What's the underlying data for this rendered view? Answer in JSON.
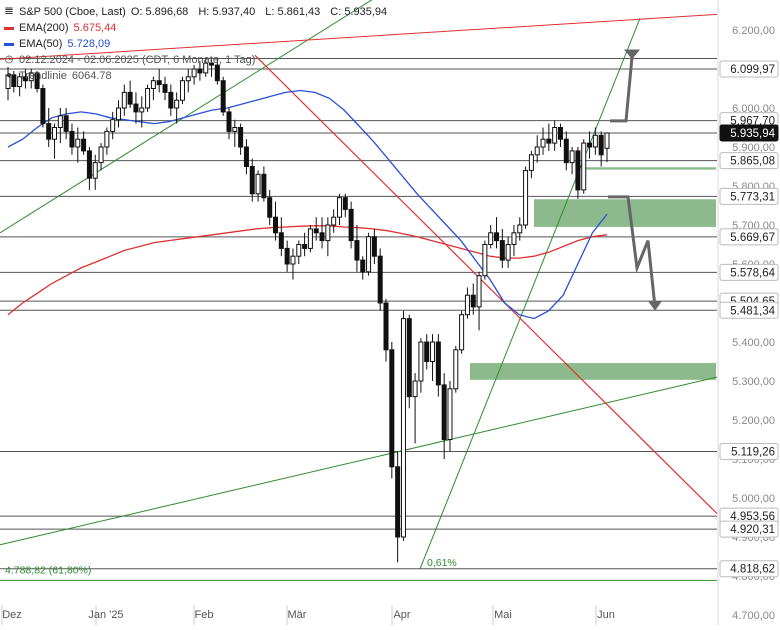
{
  "chart_data": {
    "type": "candlestick",
    "instrument": "S&P 500 (Cboe, Last)",
    "ohlc_last": {
      "O": "5.896,68",
      "H": "5.937,40",
      "L": "5.861,43",
      "C": "5.935,94"
    },
    "legend": {
      "ema200": {
        "label": "EMA(200)",
        "value": "5.675,44",
        "color": "#e03030"
      },
      "ema50": {
        "label": "EMA(50)",
        "value": "5.728,09",
        "color": "#2850d8"
      },
      "range": "02.12.2024 - 02.06.2025  (CDT, 6 Monate, 1 Tag)",
      "trendline": {
        "label": "Trendlinie",
        "value": "6064.78"
      }
    },
    "y_range": [
      4700,
      6300
    ],
    "y_ticks": [
      {
        "v": 4700,
        "label": "4.700,00"
      },
      {
        "v": 4800,
        "label": "4.800,00"
      },
      {
        "v": 4900,
        "label": "4.900,00"
      },
      {
        "v": 5000,
        "label": "5.000,00"
      },
      {
        "v": 5100,
        "label": "5.100,00"
      },
      {
        "v": 5200,
        "label": "5.200,00"
      },
      {
        "v": 5300,
        "label": "5.300,00"
      },
      {
        "v": 5400,
        "label": "5.400,00"
      },
      {
        "v": 5500,
        "label": "5.500,00"
      },
      {
        "v": 5600,
        "label": "5.600,00"
      },
      {
        "v": 5700,
        "label": "5.700,00"
      },
      {
        "v": 5800,
        "label": "5.800,00"
      },
      {
        "v": 5900,
        "label": "5.900,00"
      },
      {
        "v": 6000,
        "label": "6.000,00"
      },
      {
        "v": 6100,
        "label": "6.100,00"
      },
      {
        "v": 6200,
        "label": "6.200,00"
      }
    ],
    "x_labels": [
      "Dez",
      "Jan '25",
      "Feb",
      "Mär",
      "Apr",
      "Mai",
      "Jun"
    ],
    "price_levels": [
      {
        "v": 6127,
        "label": ""
      },
      {
        "v": 6099.97,
        "label": "6.099,97"
      },
      {
        "v": 5967.7,
        "label": "5.967,70"
      },
      {
        "v": 5935.94,
        "label": "5.935,94",
        "current": true
      },
      {
        "v": 5865.08,
        "label": "5.865,08"
      },
      {
        "v": 5773.31,
        "label": "5.773,31"
      },
      {
        "v": 5669.67,
        "label": "5.669,67"
      },
      {
        "v": 5578.64,
        "label": "5.578,64"
      },
      {
        "v": 5504.65,
        "label": "5.504,65"
      },
      {
        "v": 5481.34,
        "label": "5.481,34"
      },
      {
        "v": 5119.26,
        "label": "5.119,26"
      },
      {
        "v": 4953.56,
        "label": "4.953,56"
      },
      {
        "v": 4920.31,
        "label": "4.920,31"
      },
      {
        "v": 4818.62,
        "label": "4.818,62"
      },
      {
        "v": 4788.82,
        "label": ""
      }
    ],
    "annotations": [
      {
        "text": "4.788,82 (61,80%)",
        "color": "#2e8b2e"
      },
      {
        "text": "0,61%",
        "color": "#2e8b2e"
      }
    ],
    "zones": [
      {
        "from": 5842,
        "to": 5848,
        "color": "#7fb37f"
      },
      {
        "from": 5695,
        "to": 5766,
        "color": "#7fb37f"
      },
      {
        "from": 5303,
        "to": 5346,
        "color": "#7fb37f"
      }
    ],
    "candles": [
      {
        "o": 6050,
        "h": 6105,
        "l": 6020,
        "c": 6085
      },
      {
        "o": 6085,
        "h": 6095,
        "l": 6040,
        "c": 6055
      },
      {
        "o": 6055,
        "h": 6090,
        "l": 6030,
        "c": 6080
      },
      {
        "o": 6080,
        "h": 6100,
        "l": 6050,
        "c": 6070
      },
      {
        "o": 6070,
        "h": 6100,
        "l": 6050,
        "c": 6090
      },
      {
        "o": 6090,
        "h": 6095,
        "l": 6040,
        "c": 6050
      },
      {
        "o": 6050,
        "h": 6060,
        "l": 5950,
        "c": 5960
      },
      {
        "o": 5960,
        "h": 6000,
        "l": 5900,
        "c": 5920
      },
      {
        "o": 5920,
        "h": 5960,
        "l": 5870,
        "c": 5950
      },
      {
        "o": 5950,
        "h": 6000,
        "l": 5910,
        "c": 5980
      },
      {
        "o": 5980,
        "h": 6000,
        "l": 5920,
        "c": 5940
      },
      {
        "o": 5940,
        "h": 5960,
        "l": 5880,
        "c": 5900
      },
      {
        "o": 5900,
        "h": 5950,
        "l": 5860,
        "c": 5920
      },
      {
        "o": 5920,
        "h": 5940,
        "l": 5880,
        "c": 5890
      },
      {
        "o": 5890,
        "h": 5900,
        "l": 5790,
        "c": 5820
      },
      {
        "o": 5820,
        "h": 5880,
        "l": 5790,
        "c": 5860
      },
      {
        "o": 5860,
        "h": 5910,
        "l": 5840,
        "c": 5900
      },
      {
        "o": 5900,
        "h": 5950,
        "l": 5880,
        "c": 5940
      },
      {
        "o": 5940,
        "h": 5990,
        "l": 5920,
        "c": 5970
      },
      {
        "o": 5970,
        "h": 6020,
        "l": 5950,
        "c": 6000
      },
      {
        "o": 6000,
        "h": 6060,
        "l": 5980,
        "c": 6040
      },
      {
        "o": 6040,
        "h": 6070,
        "l": 6000,
        "c": 6010
      },
      {
        "o": 6010,
        "h": 6040,
        "l": 5960,
        "c": 5990
      },
      {
        "o": 5990,
        "h": 6030,
        "l": 5950,
        "c": 6000
      },
      {
        "o": 6000,
        "h": 6060,
        "l": 5990,
        "c": 6050
      },
      {
        "o": 6050,
        "h": 6080,
        "l": 6020,
        "c": 6070
      },
      {
        "o": 6070,
        "h": 6100,
        "l": 6040,
        "c": 6060
      },
      {
        "o": 6060,
        "h": 6080,
        "l": 6020,
        "c": 6040
      },
      {
        "o": 6040,
        "h": 6060,
        "l": 5980,
        "c": 6000
      },
      {
        "o": 6000,
        "h": 6040,
        "l": 5960,
        "c": 6020
      },
      {
        "o": 6020,
        "h": 6080,
        "l": 6010,
        "c": 6070
      },
      {
        "o": 6070,
        "h": 6100,
        "l": 6040,
        "c": 6080
      },
      {
        "o": 6080,
        "h": 6110,
        "l": 6060,
        "c": 6100
      },
      {
        "o": 6100,
        "h": 6120,
        "l": 6070,
        "c": 6090
      },
      {
        "o": 6090,
        "h": 6127,
        "l": 6080,
        "c": 6115
      },
      {
        "o": 6115,
        "h": 6125,
        "l": 6080,
        "c": 6110
      },
      {
        "o": 6110,
        "h": 6130,
        "l": 6060,
        "c": 6070
      },
      {
        "o": 6070,
        "h": 6080,
        "l": 5980,
        "c": 5990
      },
      {
        "o": 5990,
        "h": 6000,
        "l": 5920,
        "c": 5940
      },
      {
        "o": 5940,
        "h": 5970,
        "l": 5900,
        "c": 5950
      },
      {
        "o": 5950,
        "h": 5960,
        "l": 5880,
        "c": 5900
      },
      {
        "o": 5900,
        "h": 5920,
        "l": 5830,
        "c": 5850
      },
      {
        "o": 5850,
        "h": 5870,
        "l": 5760,
        "c": 5780
      },
      {
        "o": 5780,
        "h": 5840,
        "l": 5760,
        "c": 5830
      },
      {
        "o": 5830,
        "h": 5850,
        "l": 5760,
        "c": 5770
      },
      {
        "o": 5770,
        "h": 5790,
        "l": 5700,
        "c": 5720
      },
      {
        "o": 5720,
        "h": 5760,
        "l": 5660,
        "c": 5680
      },
      {
        "o": 5680,
        "h": 5720,
        "l": 5620,
        "c": 5640
      },
      {
        "o": 5640,
        "h": 5660,
        "l": 5580,
        "c": 5600
      },
      {
        "o": 5600,
        "h": 5640,
        "l": 5560,
        "c": 5620
      },
      {
        "o": 5620,
        "h": 5660,
        "l": 5600,
        "c": 5650
      },
      {
        "o": 5650,
        "h": 5680,
        "l": 5620,
        "c": 5640
      },
      {
        "o": 5640,
        "h": 5700,
        "l": 5630,
        "c": 5690
      },
      {
        "o": 5690,
        "h": 5720,
        "l": 5660,
        "c": 5680
      },
      {
        "o": 5680,
        "h": 5720,
        "l": 5640,
        "c": 5660
      },
      {
        "o": 5660,
        "h": 5720,
        "l": 5620,
        "c": 5700
      },
      {
        "o": 5700,
        "h": 5740,
        "l": 5680,
        "c": 5720
      },
      {
        "o": 5720,
        "h": 5780,
        "l": 5700,
        "c": 5770
      },
      {
        "o": 5770,
        "h": 5780,
        "l": 5720,
        "c": 5740
      },
      {
        "o": 5740,
        "h": 5760,
        "l": 5640,
        "c": 5660
      },
      {
        "o": 5660,
        "h": 5700,
        "l": 5580,
        "c": 5610
      },
      {
        "o": 5610,
        "h": 5620,
        "l": 5560,
        "c": 5580
      },
      {
        "o": 5580,
        "h": 5680,
        "l": 5570,
        "c": 5670
      },
      {
        "o": 5670,
        "h": 5690,
        "l": 5600,
        "c": 5620
      },
      {
        "o": 5620,
        "h": 5640,
        "l": 5480,
        "c": 5500
      },
      {
        "o": 5500,
        "h": 5510,
        "l": 5350,
        "c": 5380
      },
      {
        "o": 5380,
        "h": 5400,
        "l": 5050,
        "c": 5080
      },
      {
        "o": 5080,
        "h": 5120,
        "l": 4835,
        "c": 4900
      },
      {
        "o": 4900,
        "h": 5480,
        "l": 4890,
        "c": 5460
      },
      {
        "o": 5460,
        "h": 5470,
        "l": 5230,
        "c": 5260
      },
      {
        "o": 5260,
        "h": 5320,
        "l": 5140,
        "c": 5300
      },
      {
        "o": 5300,
        "h": 5410,
        "l": 5270,
        "c": 5400
      },
      {
        "o": 5400,
        "h": 5420,
        "l": 5330,
        "c": 5350
      },
      {
        "o": 5350,
        "h": 5420,
        "l": 5300,
        "c": 5400
      },
      {
        "o": 5400,
        "h": 5420,
        "l": 5260,
        "c": 5290
      },
      {
        "o": 5290,
        "h": 5320,
        "l": 5100,
        "c": 5150
      },
      {
        "o": 5150,
        "h": 5300,
        "l": 5120,
        "c": 5280
      },
      {
        "o": 5280,
        "h": 5390,
        "l": 5270,
        "c": 5380
      },
      {
        "o": 5380,
        "h": 5480,
        "l": 5370,
        "c": 5470
      },
      {
        "o": 5470,
        "h": 5540,
        "l": 5460,
        "c": 5520
      },
      {
        "o": 5520,
        "h": 5550,
        "l": 5470,
        "c": 5490
      },
      {
        "o": 5490,
        "h": 5580,
        "l": 5430,
        "c": 5570
      },
      {
        "o": 5570,
        "h": 5660,
        "l": 5560,
        "c": 5650
      },
      {
        "o": 5650,
        "h": 5700,
        "l": 5640,
        "c": 5680
      },
      {
        "o": 5680,
        "h": 5720,
        "l": 5640,
        "c": 5660
      },
      {
        "o": 5660,
        "h": 5690,
        "l": 5590,
        "c": 5610
      },
      {
        "o": 5610,
        "h": 5670,
        "l": 5590,
        "c": 5650
      },
      {
        "o": 5650,
        "h": 5700,
        "l": 5620,
        "c": 5680
      },
      {
        "o": 5680,
        "h": 5720,
        "l": 5660,
        "c": 5700
      },
      {
        "o": 5700,
        "h": 5850,
        "l": 5690,
        "c": 5840
      },
      {
        "o": 5840,
        "h": 5890,
        "l": 5820,
        "c": 5880
      },
      {
        "o": 5880,
        "h": 5930,
        "l": 5860,
        "c": 5900
      },
      {
        "o": 5900,
        "h": 5950,
        "l": 5880,
        "c": 5920
      },
      {
        "o": 5920,
        "h": 5960,
        "l": 5890,
        "c": 5910
      },
      {
        "o": 5910,
        "h": 5968,
        "l": 5890,
        "c": 5950
      },
      {
        "o": 5950,
        "h": 5960,
        "l": 5900,
        "c": 5920
      },
      {
        "o": 5920,
        "h": 5940,
        "l": 5840,
        "c": 5860
      },
      {
        "o": 5860,
        "h": 5900,
        "l": 5830,
        "c": 5890
      },
      {
        "o": 5890,
        "h": 5900,
        "l": 5767,
        "c": 5790
      },
      {
        "o": 5790,
        "h": 5920,
        "l": 5780,
        "c": 5910
      },
      {
        "o": 5910,
        "h": 5940,
        "l": 5870,
        "c": 5900
      },
      {
        "o": 5900,
        "h": 5950,
        "l": 5880,
        "c": 5930
      },
      {
        "o": 5930,
        "h": 5940,
        "l": 5850,
        "c": 5880
      },
      {
        "o": 5896.68,
        "h": 5937.4,
        "l": 5861.43,
        "c": 5935.94
      }
    ],
    "ema50": [
      5900,
      5920,
      5950,
      5975,
      5985,
      5990,
      5985,
      5975,
      5970,
      5965,
      5960,
      5965,
      5975,
      5985,
      5995,
      6000,
      6010,
      6020,
      6030,
      6040,
      6045,
      6040,
      6025,
      5995,
      5955,
      5915,
      5870,
      5825,
      5780,
      5740,
      5700,
      5660,
      5610,
      5560,
      5500,
      5470,
      5460,
      5480,
      5520,
      5600,
      5680,
      5728
    ],
    "ema200": [
      5470,
      5500,
      5525,
      5550,
      5570,
      5590,
      5605,
      5620,
      5635,
      5645,
      5655,
      5660,
      5665,
      5670,
      5675,
      5680,
      5685,
      5690,
      5693,
      5695,
      5697,
      5698,
      5698,
      5695,
      5693,
      5690,
      5685,
      5678,
      5670,
      5660,
      5650,
      5640,
      5630,
      5620,
      5615,
      5615,
      5620,
      5630,
      5645,
      5660,
      5670,
      5675
    ]
  }
}
